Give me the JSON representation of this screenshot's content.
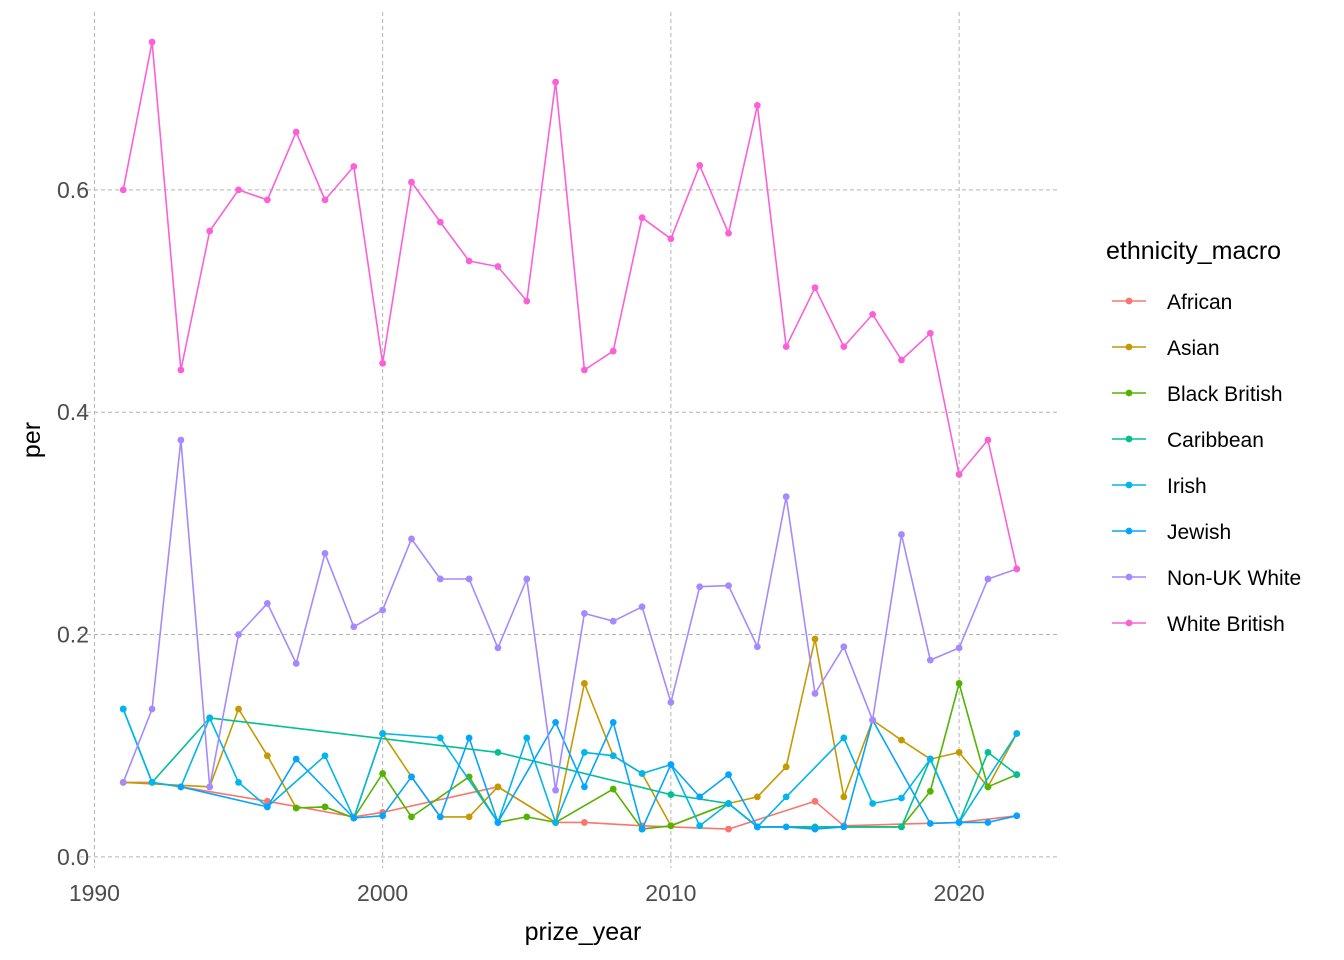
{
  "chart_data": {
    "type": "line",
    "xlabel": "prize_year",
    "ylabel": "per",
    "xlim": [
      1989.5,
      2023.5
    ],
    "ylim": [
      -0.01,
      0.76
    ],
    "x_ticks": [
      1990,
      2000,
      2010,
      2020
    ],
    "y_ticks": [
      0.0,
      0.2,
      0.4,
      0.6
    ],
    "y_tick_labels": [
      "0.0",
      "0.2",
      "0.4",
      "0.6"
    ],
    "grid": true,
    "legend": {
      "title": "ethnicity_macro",
      "position": "right"
    },
    "series": [
      {
        "name": "African",
        "color": "#F8766D",
        "points": [
          [
            1991,
            0.067
          ],
          [
            1992,
            0.067
          ],
          [
            1993,
            0.063
          ],
          [
            1996,
            0.05
          ],
          [
            1999,
            0.036
          ],
          [
            2000,
            0.04
          ],
          [
            2004,
            0.063
          ],
          [
            2006,
            0.031
          ],
          [
            2007,
            0.031
          ],
          [
            2009,
            0.028
          ],
          [
            2012,
            0.025
          ],
          [
            2015,
            0.05
          ],
          [
            2016,
            0.028
          ],
          [
            2020,
            0.031
          ],
          [
            2022,
            0.037
          ]
        ]
      },
      {
        "name": "Asian",
        "color": "#C49A00",
        "points": [
          [
            1991,
            0.067
          ],
          [
            1994,
            0.063
          ],
          [
            1995,
            0.133
          ],
          [
            1996,
            0.091
          ],
          [
            1997,
            0.044
          ],
          [
            1998,
            0.045
          ],
          [
            1999,
            0.035
          ],
          [
            2000,
            0.111
          ],
          [
            2001,
            0.072
          ],
          [
            2002,
            0.036
          ],
          [
            2003,
            0.036
          ],
          [
            2004,
            0.063
          ],
          [
            2006,
            0.031
          ],
          [
            2007,
            0.156
          ],
          [
            2008,
            0.091
          ],
          [
            2009,
            0.075
          ],
          [
            2010,
            0.028
          ],
          [
            2012,
            0.048
          ],
          [
            2013,
            0.054
          ],
          [
            2014,
            0.081
          ],
          [
            2015,
            0.196
          ],
          [
            2016,
            0.054
          ],
          [
            2017,
            0.123
          ],
          [
            2018,
            0.105
          ],
          [
            2019,
            0.088
          ],
          [
            2020,
            0.094
          ],
          [
            2021,
            0.063
          ],
          [
            2022,
            0.111
          ]
        ]
      },
      {
        "name": "Black British",
        "color": "#53B400",
        "points": [
          [
            1997,
            0.044
          ],
          [
            1998,
            0.045
          ],
          [
            1999,
            0.035
          ],
          [
            2000,
            0.075
          ],
          [
            2001,
            0.036
          ],
          [
            2003,
            0.072
          ],
          [
            2004,
            0.031
          ],
          [
            2005,
            0.036
          ],
          [
            2006,
            0.031
          ],
          [
            2008,
            0.061
          ],
          [
            2009,
            0.025
          ],
          [
            2010,
            0.028
          ],
          [
            2012,
            0.048
          ],
          [
            2013,
            0.027
          ],
          [
            2018,
            0.027
          ],
          [
            2019,
            0.059
          ],
          [
            2020,
            0.156
          ],
          [
            2021,
            0.063
          ],
          [
            2022,
            0.074
          ]
        ]
      },
      {
        "name": "Caribbean",
        "color": "#00C094",
        "points": [
          [
            1991,
            0.133
          ],
          [
            1992,
            0.067
          ],
          [
            1994,
            0.125
          ],
          [
            2004,
            0.094
          ],
          [
            2010,
            0.056
          ],
          [
            2012,
            0.048
          ],
          [
            2013,
            0.027
          ],
          [
            2015,
            0.027
          ],
          [
            2018,
            0.027
          ],
          [
            2019,
            0.088
          ],
          [
            2020,
            0.031
          ],
          [
            2021,
            0.094
          ],
          [
            2022,
            0.074
          ]
        ]
      },
      {
        "name": "Irish",
        "color": "#00B6EB",
        "points": [
          [
            1991,
            0.133
          ],
          [
            1992,
            0.067
          ],
          [
            1993,
            0.063
          ],
          [
            1994,
            0.125
          ],
          [
            1995,
            0.067
          ],
          [
            1996,
            0.045
          ],
          [
            1998,
            0.091
          ],
          [
            1999,
            0.035
          ],
          [
            2000,
            0.111
          ],
          [
            2002,
            0.107
          ],
          [
            2004,
            0.031
          ],
          [
            2005,
            0.107
          ],
          [
            2006,
            0.031
          ],
          [
            2007,
            0.094
          ],
          [
            2008,
            0.091
          ],
          [
            2009,
            0.075
          ],
          [
            2010,
            0.083
          ],
          [
            2011,
            0.028
          ],
          [
            2012,
            0.048
          ],
          [
            2013,
            0.027
          ],
          [
            2014,
            0.054
          ],
          [
            2016,
            0.107
          ],
          [
            2017,
            0.048
          ],
          [
            2018,
            0.053
          ],
          [
            2019,
            0.088
          ],
          [
            2020,
            0.031
          ],
          [
            2022,
            0.111
          ]
        ]
      },
      {
        "name": "Jewish",
        "color": "#06A4FF",
        "points": [
          [
            1993,
            0.063
          ],
          [
            1996,
            0.045
          ],
          [
            1997,
            0.088
          ],
          [
            1999,
            0.035
          ],
          [
            2000,
            0.037
          ],
          [
            2001,
            0.072
          ],
          [
            2002,
            0.036
          ],
          [
            2003,
            0.107
          ],
          [
            2004,
            0.031
          ],
          [
            2006,
            0.121
          ],
          [
            2007,
            0.063
          ],
          [
            2008,
            0.121
          ],
          [
            2009,
            0.025
          ],
          [
            2010,
            0.083
          ],
          [
            2011,
            0.054
          ],
          [
            2012,
            0.074
          ],
          [
            2013,
            0.027
          ],
          [
            2014,
            0.027
          ],
          [
            2015,
            0.025
          ],
          [
            2016,
            0.027
          ],
          [
            2017,
            0.123
          ],
          [
            2019,
            0.03
          ],
          [
            2020,
            0.031
          ],
          [
            2021,
            0.031
          ],
          [
            2022,
            0.037
          ]
        ]
      },
      {
        "name": "Non-UK White",
        "color": "#A58AFF",
        "points": [
          [
            1991,
            0.067
          ],
          [
            1992,
            0.133
          ],
          [
            1993,
            0.375
          ],
          [
            1994,
            0.063
          ],
          [
            1995,
            0.2
          ],
          [
            1996,
            0.228
          ],
          [
            1997,
            0.174
          ],
          [
            1998,
            0.273
          ],
          [
            1999,
            0.207
          ],
          [
            2000,
            0.222
          ],
          [
            2001,
            0.286
          ],
          [
            2002,
            0.25
          ],
          [
            2003,
            0.25
          ],
          [
            2004,
            0.188
          ],
          [
            2005,
            0.25
          ],
          [
            2006,
            0.06
          ],
          [
            2007,
            0.219
          ],
          [
            2008,
            0.212
          ],
          [
            2009,
            0.225
          ],
          [
            2010,
            0.139
          ],
          [
            2011,
            0.243
          ],
          [
            2012,
            0.244
          ],
          [
            2013,
            0.189
          ],
          [
            2014,
            0.324
          ],
          [
            2015,
            0.147
          ],
          [
            2016,
            0.189
          ],
          [
            2017,
            0.123
          ],
          [
            2018,
            0.29
          ],
          [
            2019,
            0.177
          ],
          [
            2020,
            0.188
          ],
          [
            2021,
            0.25
          ],
          [
            2022,
            0.259
          ]
        ]
      },
      {
        "name": "White British",
        "color": "#FB61D7",
        "points": [
          [
            1991,
            0.6
          ],
          [
            1992,
            0.733
          ],
          [
            1993,
            0.438
          ],
          [
            1994,
            0.563
          ],
          [
            1995,
            0.6
          ],
          [
            1996,
            0.591
          ],
          [
            1997,
            0.652
          ],
          [
            1998,
            0.591
          ],
          [
            1999,
            0.621
          ],
          [
            2000,
            0.444
          ],
          [
            2001,
            0.607
          ],
          [
            2002,
            0.571
          ],
          [
            2003,
            0.536
          ],
          [
            2004,
            0.531
          ],
          [
            2005,
            0.5
          ],
          [
            2006,
            0.697
          ],
          [
            2007,
            0.438
          ],
          [
            2008,
            0.455
          ],
          [
            2009,
            0.575
          ],
          [
            2010,
            0.556
          ],
          [
            2011,
            0.622
          ],
          [
            2012,
            0.561
          ],
          [
            2013,
            0.676
          ],
          [
            2014,
            0.459
          ],
          [
            2015,
            0.512
          ],
          [
            2016,
            0.459
          ],
          [
            2017,
            0.488
          ],
          [
            2018,
            0.447
          ],
          [
            2019,
            0.471
          ],
          [
            2020,
            0.344
          ],
          [
            2021,
            0.375
          ],
          [
            2022,
            0.259
          ]
        ]
      }
    ]
  }
}
